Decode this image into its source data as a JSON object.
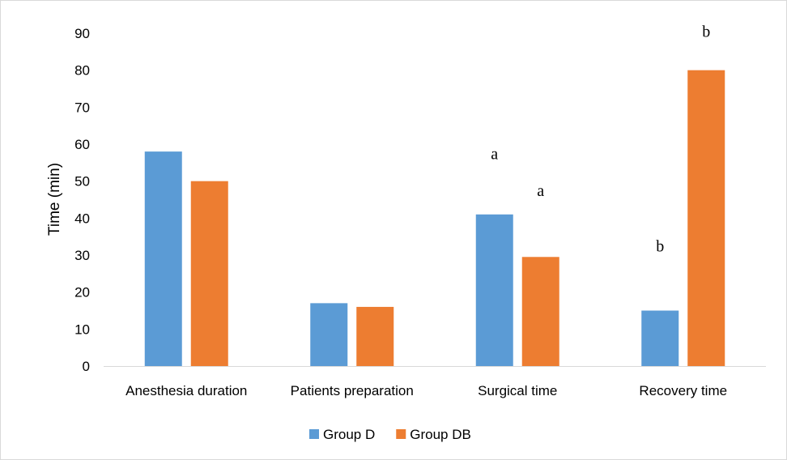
{
  "chart_data": {
    "type": "bar",
    "title": "",
    "xlabel": "",
    "ylabel": "Time (min)",
    "ylim": [
      0,
      90
    ],
    "yticks": [
      0,
      10,
      20,
      30,
      40,
      50,
      60,
      70,
      80,
      90
    ],
    "categories": [
      "Anesthesia duration",
      "Patients preparation",
      "Surgical time",
      "Recovery time"
    ],
    "series": [
      {
        "name": "Group D",
        "color": "#5B9BD5",
        "values": [
          58,
          17,
          41,
          15
        ]
      },
      {
        "name": "Group DB",
        "color": "#ED7D31",
        "values": [
          50,
          16,
          29.5,
          80
        ]
      }
    ],
    "annotations": [
      {
        "text": "a",
        "category": 2,
        "series": 0,
        "value": 56
      },
      {
        "text": "a",
        "category": 2,
        "series": 1,
        "value": 46
      },
      {
        "text": "b",
        "category": 3,
        "series": 0,
        "value": 31
      },
      {
        "text": "b",
        "category": 3,
        "series": 1,
        "value": 89
      }
    ],
    "grid": false,
    "legend": "bottom"
  }
}
